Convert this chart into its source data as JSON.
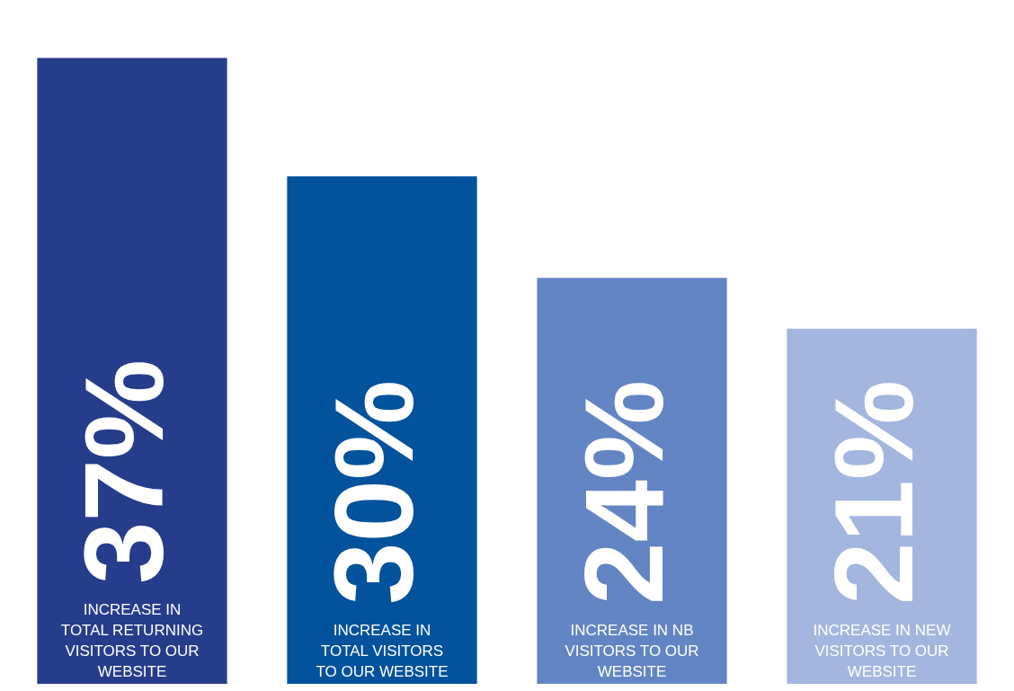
{
  "chart_data": {
    "type": "bar",
    "categories": [
      "INCREASE IN TOTAL RETURNING VISITORS TO OUR WEBSITE",
      "INCREASE IN TOTAL VISITORS TO OUR WEBSITE",
      "INCREASE IN NB VISITORS TO OUR WEBSITE",
      "INCREASE IN NEW VISITORS TO OUR WEBSITE"
    ],
    "values": [
      37,
      30,
      24,
      21
    ],
    "value_labels": [
      "37%",
      "30%",
      "24%",
      "21%"
    ],
    "colors": [
      "#263d8c",
      "#02529c",
      "#6385c3",
      "#a3b7de"
    ],
    "legend": false
  }
}
